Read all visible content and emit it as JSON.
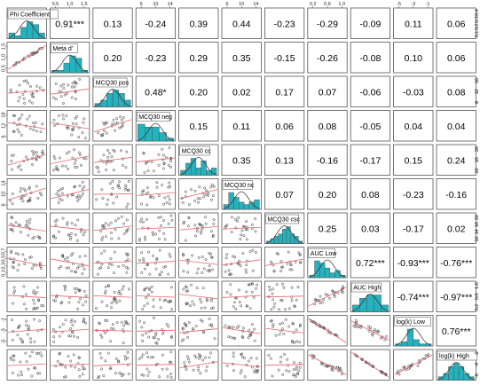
{
  "chart_data": {
    "type": "scatter",
    "title": "",
    "variables": [
      "Phi Coefficient",
      "Meta d'",
      "MCQ30 pos",
      "MCQ30 neg",
      "MCQ30 cc",
      "MCQ30 nc",
      "MCQ30 csc",
      "AUC Low",
      "AUC High",
      "log(k) Low",
      "log(k) High"
    ],
    "correlations": [
      {
        "row": 0,
        "col": 1,
        "text": "0.91***"
      },
      {
        "row": 0,
        "col": 2,
        "text": "0.13"
      },
      {
        "row": 0,
        "col": 3,
        "text": "-0.24"
      },
      {
        "row": 0,
        "col": 4,
        "text": "0.39"
      },
      {
        "row": 0,
        "col": 5,
        "text": "0.44"
      },
      {
        "row": 0,
        "col": 6,
        "text": "-0.23"
      },
      {
        "row": 0,
        "col": 7,
        "text": "-0.29"
      },
      {
        "row": 0,
        "col": 8,
        "text": "-0.09"
      },
      {
        "row": 0,
        "col": 9,
        "text": "0.11"
      },
      {
        "row": 0,
        "col": 10,
        "text": "0.06"
      },
      {
        "row": 1,
        "col": 2,
        "text": "0.20"
      },
      {
        "row": 1,
        "col": 3,
        "text": "-0.23"
      },
      {
        "row": 1,
        "col": 4,
        "text": "0.29"
      },
      {
        "row": 1,
        "col": 5,
        "text": "0.35"
      },
      {
        "row": 1,
        "col": 6,
        "text": "-0.15"
      },
      {
        "row": 1,
        "col": 7,
        "text": "-0.26"
      },
      {
        "row": 1,
        "col": 8,
        "text": "-0.08"
      },
      {
        "row": 1,
        "col": 9,
        "text": "0.10"
      },
      {
        "row": 1,
        "col": 10,
        "text": "0.06"
      },
      {
        "row": 2,
        "col": 3,
        "text": "0.48*"
      },
      {
        "row": 2,
        "col": 4,
        "text": "0.20"
      },
      {
        "row": 2,
        "col": 5,
        "text": "0.02"
      },
      {
        "row": 2,
        "col": 6,
        "text": "0.17"
      },
      {
        "row": 2,
        "col": 7,
        "text": "0.07"
      },
      {
        "row": 2,
        "col": 8,
        "text": "-0.06"
      },
      {
        "row": 2,
        "col": 9,
        "text": "-0.03"
      },
      {
        "row": 2,
        "col": 10,
        "text": "0.08"
      },
      {
        "row": 3,
        "col": 4,
        "text": "0.15"
      },
      {
        "row": 3,
        "col": 5,
        "text": "0.11"
      },
      {
        "row": 3,
        "col": 6,
        "text": "0.06"
      },
      {
        "row": 3,
        "col": 7,
        "text": "0.08"
      },
      {
        "row": 3,
        "col": 8,
        "text": "-0.05"
      },
      {
        "row": 3,
        "col": 9,
        "text": "0.04"
      },
      {
        "row": 3,
        "col": 10,
        "text": "0.04"
      },
      {
        "row": 4,
        "col": 5,
        "text": "0.35"
      },
      {
        "row": 4,
        "col": 6,
        "text": "0.13"
      },
      {
        "row": 4,
        "col": 7,
        "text": "-0.16"
      },
      {
        "row": 4,
        "col": 8,
        "text": "-0.17"
      },
      {
        "row": 4,
        "col": 9,
        "text": "0.15"
      },
      {
        "row": 4,
        "col": 10,
        "text": "0.24"
      },
      {
        "row": 5,
        "col": 6,
        "text": "0.07"
      },
      {
        "row": 5,
        "col": 7,
        "text": "0.20"
      },
      {
        "row": 5,
        "col": 8,
        "text": "0.08"
      },
      {
        "row": 5,
        "col": 9,
        "text": "-0.23"
      },
      {
        "row": 5,
        "col": 10,
        "text": "-0.16"
      },
      {
        "row": 6,
        "col": 7,
        "text": "0.25"
      },
      {
        "row": 6,
        "col": 8,
        "text": "0.03"
      },
      {
        "row": 6,
        "col": 9,
        "text": "-0.17"
      },
      {
        "row": 6,
        "col": 10,
        "text": "0.02"
      },
      {
        "row": 7,
        "col": 8,
        "text": "0.72***"
      },
      {
        "row": 7,
        "col": 9,
        "text": "-0.93***"
      },
      {
        "row": 7,
        "col": 10,
        "text": "-0.76***"
      },
      {
        "row": 8,
        "col": 9,
        "text": "-0.74***"
      },
      {
        "row": 8,
        "col": 10,
        "text": "-0.97***"
      },
      {
        "row": 9,
        "col": 10,
        "text": "0.76***"
      }
    ],
    "histograms": [
      [
        2,
        1,
        4,
        6,
        5,
        2
      ],
      [
        1,
        1,
        4,
        7,
        6,
        1
      ],
      [
        1,
        2,
        4,
        5,
        4,
        2
      ],
      [
        6,
        5,
        5,
        3,
        1
      ],
      [
        2,
        5,
        7,
        3,
        6,
        2,
        3
      ],
      [
        2,
        7,
        5,
        3,
        2,
        3,
        4
      ],
      [
        1,
        2,
        3,
        4,
        6,
        7,
        4,
        3,
        1
      ],
      [
        1,
        7,
        6,
        4,
        2,
        3,
        1
      ],
      [
        2,
        4,
        5,
        5,
        2
      ],
      [
        1,
        2,
        8,
        3,
        1,
        1
      ],
      [
        1,
        2,
        4,
        5,
        4,
        2,
        1
      ]
    ],
    "top_ticks": {
      "1": [
        "0.5",
        "1.0",
        "1.5"
      ],
      "3": [
        "6",
        "10",
        "14"
      ],
      "5": [
        "6",
        "10",
        "14"
      ],
      "7": [
        "0.2",
        "0.6",
        "1.0"
      ],
      "9": [
        "-5",
        "-3",
        "-1"
      ]
    },
    "bottom_ticks": {
      "0": [
        "0.1",
        "0.2",
        "0.3",
        "0.4"
      ],
      "2": [
        "8",
        "12",
        "16"
      ],
      "4": [
        "10",
        "15",
        "20"
      ],
      "6": [
        "10",
        "14",
        "18",
        "22"
      ],
      "8": [
        "0.2",
        "0.6",
        "1.0"
      ],
      "10": [
        "-6",
        "-4",
        "-2"
      ]
    },
    "left_ticks": {
      "1": [
        "0.5",
        "1.0",
        "1.5"
      ],
      "3": [
        "6",
        "12",
        "18"
      ],
      "5": [
        "6",
        "10",
        "14"
      ],
      "7": [
        "0.1",
        "0.3",
        "0.5",
        "0.7"
      ],
      "9": [
        "-5",
        "-3",
        "-1"
      ]
    },
    "right_ticks": {
      "0": [
        "0.1",
        "0.2",
        "0.3",
        "0.4"
      ],
      "2": [
        "8",
        "12",
        "16"
      ],
      "4": [
        "10",
        "15",
        "20"
      ],
      "6": [
        "10",
        "14",
        "18",
        "22"
      ],
      "8": [
        "0.2",
        "0.6",
        "1.0"
      ],
      "10": [
        "-6",
        "-4",
        "-2"
      ]
    },
    "colors": {
      "histogram_fill": "#22b3bf",
      "fit_line": "#e8636b",
      "points": "#333333"
    }
  }
}
